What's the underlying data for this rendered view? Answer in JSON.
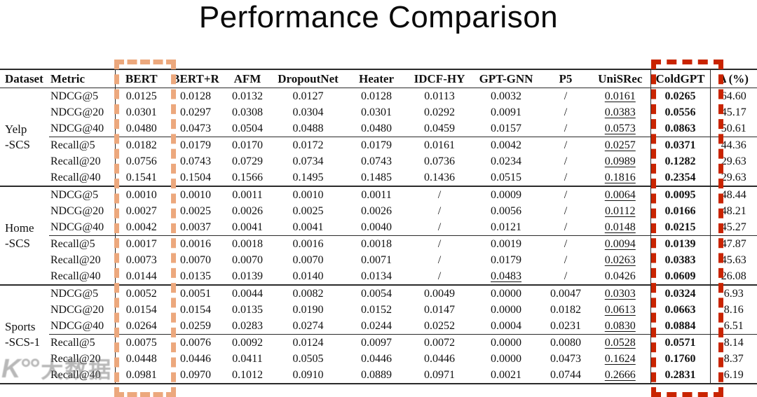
{
  "title": "Performance Comparison",
  "watermark": {
    "logo": "K°°",
    "text": "大数据"
  },
  "highlights": {
    "bert_box_color": "#eca87d",
    "coldgpt_box_color": "#c92400"
  },
  "table": {
    "columns": [
      "Dataset",
      "Metric",
      "BERT",
      "BERT+R",
      "AFM",
      "DropoutNet",
      "Heater",
      "IDCF-HY",
      "GPT-GNN",
      "P5",
      "UniSRec",
      "ColdGPT",
      "Δ (%)"
    ],
    "groups": [
      {
        "dataset": [
          "Yelp",
          "-SCS"
        ],
        "rows": [
          {
            "metric": "NDCG@5",
            "values": [
              "0.0125",
              "0.0128",
              "0.0132",
              "0.0127",
              "0.0128",
              "0.0113",
              "0.0032",
              "/",
              "0.0161",
              "0.0265",
              "64.60"
            ],
            "underline": 8
          },
          {
            "metric": "NDCG@20",
            "values": [
              "0.0301",
              "0.0297",
              "0.0308",
              "0.0304",
              "0.0301",
              "0.0292",
              "0.0091",
              "/",
              "0.0383",
              "0.0556",
              "45.17"
            ],
            "underline": 8
          },
          {
            "metric": "NDCG@40",
            "values": [
              "0.0480",
              "0.0473",
              "0.0504",
              "0.0488",
              "0.0480",
              "0.0459",
              "0.0157",
              "/",
              "0.0573",
              "0.0863",
              "50.61"
            ],
            "underline": 8
          },
          {
            "metric": "Recall@5",
            "values": [
              "0.0182",
              "0.0179",
              "0.0170",
              "0.0172",
              "0.0179",
              "0.0161",
              "0.0042",
              "/",
              "0.0257",
              "0.0371",
              "44.36"
            ],
            "underline": 8
          },
          {
            "metric": "Recall@20",
            "values": [
              "0.0756",
              "0.0743",
              "0.0729",
              "0.0734",
              "0.0743",
              "0.0736",
              "0.0234",
              "/",
              "0.0989",
              "0.1282",
              "29.63"
            ],
            "underline": 8
          },
          {
            "metric": "Recall@40",
            "values": [
              "0.1541",
              "0.1504",
              "0.1566",
              "0.1495",
              "0.1485",
              "0.1436",
              "0.0515",
              "/",
              "0.1816",
              "0.2354",
              "29.63"
            ],
            "underline": 8
          }
        ]
      },
      {
        "dataset": [
          "Home",
          "-SCS"
        ],
        "rows": [
          {
            "metric": "NDCG@5",
            "values": [
              "0.0010",
              "0.0010",
              "0.0011",
              "0.0010",
              "0.0011",
              "/",
              "0.0009",
              "/",
              "0.0064",
              "0.0095",
              "48.44"
            ],
            "underline": 8
          },
          {
            "metric": "NDCG@20",
            "values": [
              "0.0027",
              "0.0025",
              "0.0026",
              "0.0025",
              "0.0026",
              "/",
              "0.0056",
              "/",
              "0.0112",
              "0.0166",
              "48.21"
            ],
            "underline": 8
          },
          {
            "metric": "NDCG@40",
            "values": [
              "0.0042",
              "0.0037",
              "0.0041",
              "0.0041",
              "0.0040",
              "/",
              "0.0121",
              "/",
              "0.0148",
              "0.0215",
              "45.27"
            ],
            "underline": 8
          },
          {
            "metric": "Recall@5",
            "values": [
              "0.0017",
              "0.0016",
              "0.0018",
              "0.0016",
              "0.0018",
              "/",
              "0.0019",
              "/",
              "0.0094",
              "0.0139",
              "47.87"
            ],
            "underline": 8
          },
          {
            "metric": "Recall@20",
            "values": [
              "0.0073",
              "0.0070",
              "0.0070",
              "0.0070",
              "0.0071",
              "/",
              "0.0179",
              "/",
              "0.0263",
              "0.0383",
              "45.63"
            ],
            "underline": 8
          },
          {
            "metric": "Recall@40",
            "values": [
              "0.0144",
              "0.0135",
              "0.0139",
              "0.0140",
              "0.0134",
              "/",
              "0.0483",
              "/",
              "0.0426",
              "0.0609",
              "26.08"
            ],
            "underline": 6
          }
        ]
      },
      {
        "dataset": [
          "Sports",
          "-SCS-1"
        ],
        "rows": [
          {
            "metric": "NDCG@5",
            "values": [
              "0.0052",
              "0.0051",
              "0.0044",
              "0.0082",
              "0.0054",
              "0.0049",
              "0.0000",
              "0.0047",
              "0.0303",
              "0.0324",
              "6.93"
            ],
            "underline": 8
          },
          {
            "metric": "NDCG@20",
            "values": [
              "0.0154",
              "0.0154",
              "0.0135",
              "0.0190",
              "0.0152",
              "0.0147",
              "0.0000",
              "0.0182",
              "0.0613",
              "0.0663",
              "8.16"
            ],
            "underline": 8
          },
          {
            "metric": "NDCG@40",
            "values": [
              "0.0264",
              "0.0259",
              "0.0283",
              "0.0274",
              "0.0244",
              "0.0252",
              "0.0004",
              "0.0231",
              "0.0830",
              "0.0884",
              "6.51"
            ],
            "underline": 8
          },
          {
            "metric": "Recall@5",
            "values": [
              "0.0075",
              "0.0076",
              "0.0092",
              "0.0124",
              "0.0097",
              "0.0072",
              "0.0000",
              "0.0080",
              "0.0528",
              "0.0571",
              "8.14"
            ],
            "underline": 8
          },
          {
            "metric": "Recall@20",
            "values": [
              "0.0448",
              "0.0446",
              "0.0411",
              "0.0505",
              "0.0446",
              "0.0446",
              "0.0000",
              "0.0473",
              "0.1624",
              "0.1760",
              "8.37"
            ],
            "underline": 8
          },
          {
            "metric": "Recall@40",
            "values": [
              "0.0981",
              "0.0970",
              "0.1012",
              "0.0910",
              "0.0889",
              "0.0971",
              "0.0021",
              "0.0744",
              "0.2666",
              "0.2831",
              "6.19"
            ],
            "underline": 8
          }
        ]
      }
    ]
  }
}
